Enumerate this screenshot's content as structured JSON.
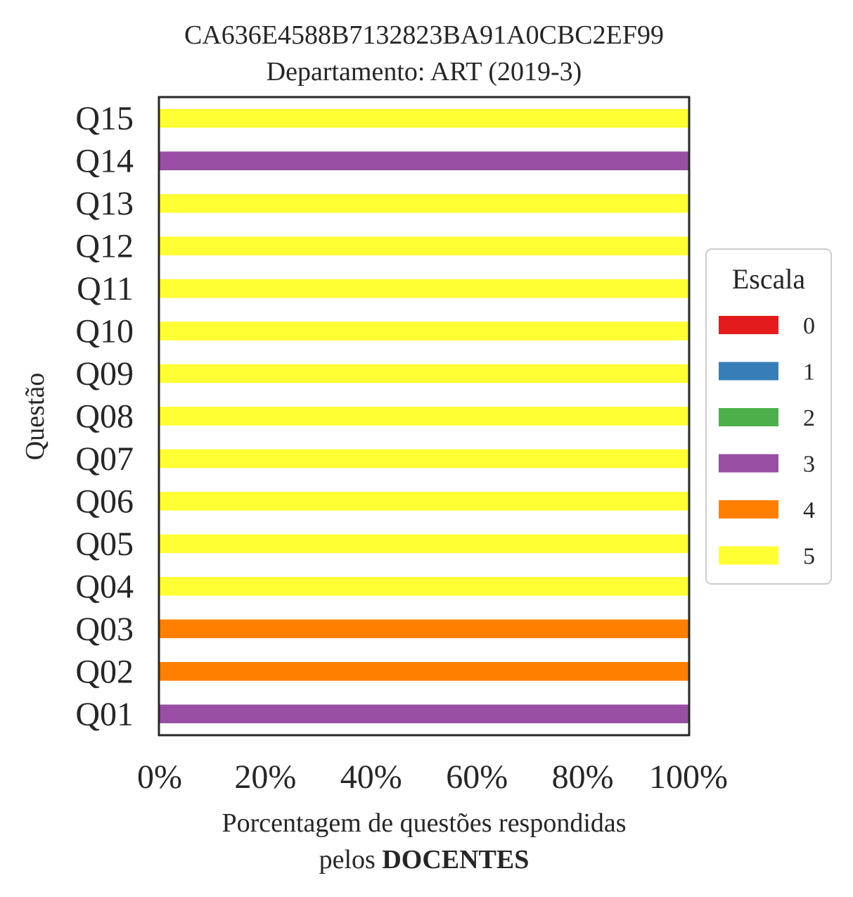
{
  "chart_data": {
    "type": "bar",
    "orientation": "horizontal",
    "stacked": true,
    "title": "CA636E4588B7132823BA91A0CBC2EF99",
    "subtitle": "Departamento: ART (2019-3)",
    "xlabel_line1": "Porcentagem de questões respondidas",
    "xlabel_line2_prefix": "pelos ",
    "xlabel_line2_bold": "DOCENTES",
    "ylabel": "Questão",
    "xlim": [
      0,
      100
    ],
    "x_ticks": [
      0,
      20,
      40,
      60,
      80,
      100
    ],
    "x_tick_labels": [
      "0%",
      "20%",
      "40%",
      "60%",
      "80%",
      "100%"
    ],
    "categories": [
      "Q01",
      "Q02",
      "Q03",
      "Q04",
      "Q05",
      "Q06",
      "Q07",
      "Q08",
      "Q09",
      "Q10",
      "Q11",
      "Q12",
      "Q13",
      "Q14",
      "Q15"
    ],
    "legend": {
      "title": "Escala",
      "placement": "right",
      "entries": [
        {
          "label": "0",
          "color": "#e41a1c"
        },
        {
          "label": "1",
          "color": "#377eb8"
        },
        {
          "label": "2",
          "color": "#4daf4a"
        },
        {
          "label": "3",
          "color": "#984ea3"
        },
        {
          "label": "4",
          "color": "#ff7f00"
        },
        {
          "label": "5",
          "color": "#ffff33"
        }
      ]
    },
    "series": [
      {
        "name": "0",
        "values": [
          0,
          0,
          0,
          0,
          0,
          0,
          0,
          0,
          0,
          0,
          0,
          0,
          0,
          0,
          0
        ]
      },
      {
        "name": "1",
        "values": [
          0,
          0,
          0,
          0,
          0,
          0,
          0,
          0,
          0,
          0,
          0,
          0,
          0,
          0,
          0
        ]
      },
      {
        "name": "2",
        "values": [
          0,
          0,
          0,
          0,
          0,
          0,
          0,
          0,
          0,
          0,
          0,
          0,
          0,
          0,
          0
        ]
      },
      {
        "name": "3",
        "values": [
          100,
          0,
          0,
          0,
          0,
          0,
          0,
          0,
          0,
          0,
          0,
          0,
          0,
          100,
          0
        ]
      },
      {
        "name": "4",
        "values": [
          0,
          100,
          100,
          0,
          0,
          0,
          0,
          0,
          0,
          0,
          0,
          0,
          0,
          0,
          0
        ]
      },
      {
        "name": "5",
        "values": [
          0,
          0,
          0,
          100,
          100,
          100,
          100,
          100,
          100,
          100,
          100,
          100,
          100,
          0,
          100
        ]
      }
    ],
    "grid": false
  }
}
